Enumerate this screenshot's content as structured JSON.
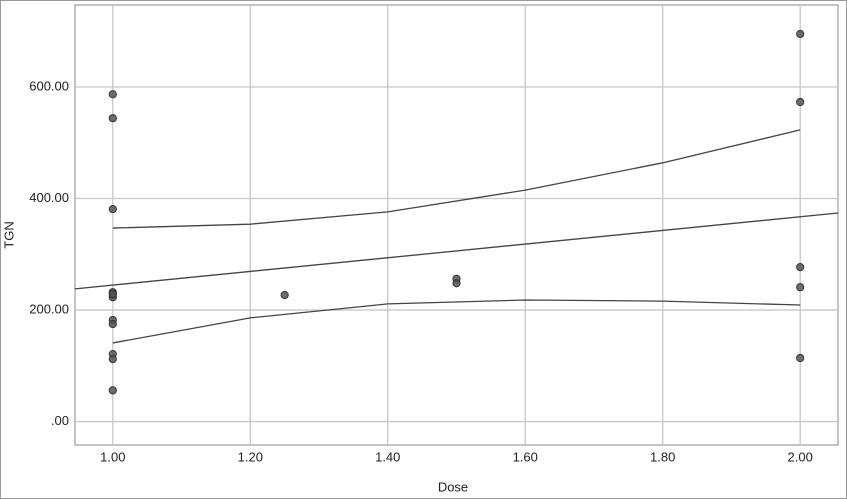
{
  "chart_data": {
    "type": "scatter",
    "x_label": "Dose",
    "y_label": "TGN",
    "x": [
      1.0,
      1.0,
      1.0,
      1.0,
      1.0,
      1.0,
      1.0,
      1.0,
      1.0,
      1.0,
      1.0,
      1.0,
      1.25,
      1.5,
      1.5,
      2.0,
      2.0,
      2.0,
      2.0,
      2.0
    ],
    "values": [
      587,
      544,
      381,
      232,
      227,
      223,
      182,
      175,
      121,
      112,
      56,
      229,
      227,
      256,
      248,
      695,
      573,
      277,
      241,
      114
    ],
    "color": "#555555",
    "lines": [
      {
        "x": [
          0.945,
          2.055
        ],
        "values": [
          238,
          374
        ]
      },
      {
        "x": [
          1.0,
          1.2,
          1.4,
          1.6,
          1.8,
          2.0
        ],
        "values": [
          347,
          354,
          376,
          415,
          464,
          523
        ]
      },
      {
        "x": [
          1.0,
          1.2,
          1.4,
          1.6,
          1.8,
          2.0
        ],
        "values": [
          141,
          186,
          211,
          218,
          216,
          209
        ]
      }
    ],
    "line_color": "#444444",
    "xlim": [
      0.945,
      2.055
    ],
    "xticks": [
      {
        "value": 1.0,
        "label": "1.00"
      },
      {
        "value": 1.2,
        "label": "1.20"
      },
      {
        "value": 1.4,
        "label": "1.40"
      },
      {
        "value": 1.6,
        "label": "1.60"
      },
      {
        "value": 1.8,
        "label": "1.80"
      },
      {
        "value": 2.0,
        "label": "2.00"
      }
    ],
    "ylim": [
      -42,
      747
    ],
    "yticks": [
      {
        "value": 0,
        "label": ".00"
      },
      {
        "value": 200,
        "label": "200.00"
      },
      {
        "value": 400,
        "label": "400.00"
      },
      {
        "value": 600,
        "label": "600.00"
      }
    ],
    "grid": true
  }
}
